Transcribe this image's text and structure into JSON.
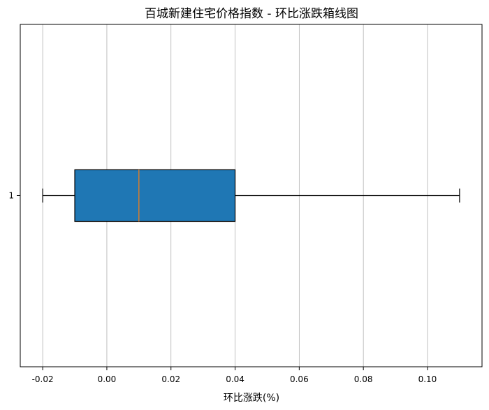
{
  "chart_data": {
    "type": "box",
    "title": "百城新建住宅价格指数 - 环比涨跌箱线图",
    "xlabel": "环比涨跌(%)",
    "ylabel": "",
    "orientation": "horizontal",
    "category_labels": [
      "1"
    ],
    "boxes": [
      {
        "whisker_low": -0.02,
        "q1": -0.01,
        "median": 0.01,
        "q3": 0.04,
        "whisker_high": 0.11
      }
    ],
    "xlim": [
      -0.027,
      0.117
    ],
    "xticks": [
      -0.02,
      0.0,
      0.02,
      0.04,
      0.06,
      0.08,
      0.1
    ],
    "xtick_labels": [
      "-0.02",
      "0.00",
      "0.02",
      "0.04",
      "0.06",
      "0.08",
      "0.10"
    ],
    "grid": {
      "x": true,
      "y": false
    },
    "colors": {
      "box_fill": "#1f77b4",
      "median": "#ff7f0e",
      "edge": "#000000",
      "grid": "#b0b0b0"
    }
  }
}
